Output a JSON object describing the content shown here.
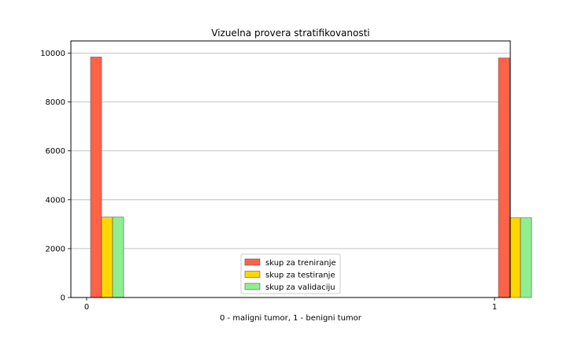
{
  "chart_data": {
    "type": "bar",
    "title": "Vizuelna provera stratifikovanosti",
    "xlabel": "0 - maligni tumor, 1 - benigni tumor",
    "ylabel": "",
    "categories": [
      "0",
      "1"
    ],
    "x_ticks": [
      "0",
      "1"
    ],
    "y_ticks": [
      "0",
      "2000",
      "4000",
      "6000",
      "8000",
      "10000"
    ],
    "ylim": [
      0,
      10500
    ],
    "grid": "y",
    "legend_position": "bottom-center",
    "series": [
      {
        "name": "skup za treniranje",
        "values": [
          9840,
          9800
        ],
        "color": "#ff6347"
      },
      {
        "name": "skup za testiranje",
        "values": [
          3290,
          3260
        ],
        "color": "#ffd700"
      },
      {
        "name": "skup za validaciju",
        "values": [
          3290,
          3260
        ],
        "color": "#90ee90"
      }
    ]
  }
}
